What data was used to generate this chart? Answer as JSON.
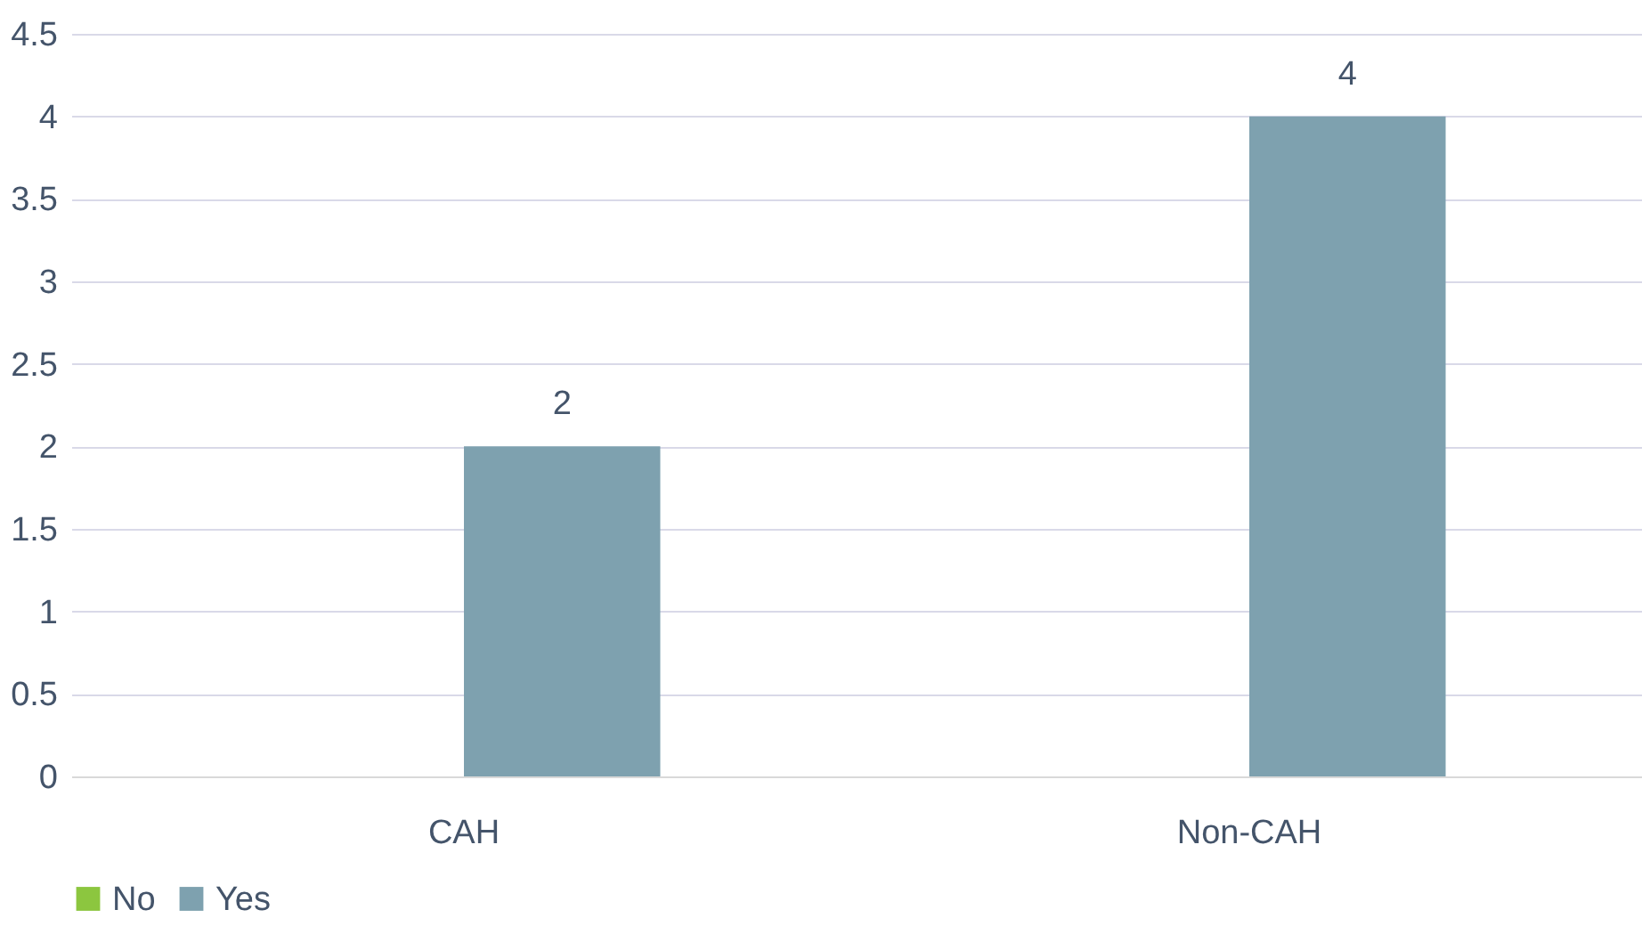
{
  "chart_data": {
    "type": "bar",
    "categories": [
      "CAH",
      "Non-CAH"
    ],
    "series": [
      {
        "name": "No",
        "color": "#8cc63f",
        "values": [
          null,
          null
        ]
      },
      {
        "name": "Yes",
        "color": "#7ea1af",
        "values": [
          2,
          4
        ]
      }
    ],
    "ylim": [
      0,
      4.5
    ],
    "yticks": [
      0,
      0.5,
      1,
      1.5,
      2,
      2.5,
      3,
      3.5,
      4,
      4.5
    ],
    "grid": "y",
    "legend": "bottom",
    "data_labels": true
  }
}
